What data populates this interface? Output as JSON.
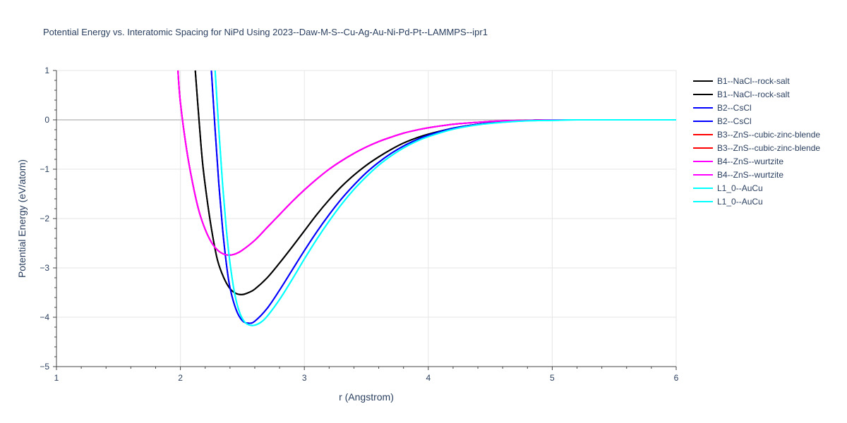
{
  "chart_data": {
    "type": "line",
    "title": "Potential Energy vs. Interatomic Spacing for NiPd Using 2023--Daw-M-S--Cu-Ag-Au-Ni-Pd-Pt--LAMMPS--ipr1",
    "xlabel": "r (Angstrom)",
    "ylabel": "Potential Energy (eV/atom)",
    "xlim": [
      1,
      6
    ],
    "ylim": [
      -5,
      1
    ],
    "xticks": [
      1,
      2,
      3,
      4,
      5,
      6
    ],
    "yticks": [
      1,
      0,
      -1,
      -2,
      -3,
      -4,
      -5
    ],
    "ytick_labels": [
      "1",
      "0",
      "−1",
      "−2",
      "−3",
      "−4",
      "−5"
    ],
    "grid": true,
    "legend_position": "right",
    "series": [
      {
        "name": "B1--NaCl--rock-salt",
        "color": "#000000",
        "x": [
          2.12,
          2.15,
          2.18,
          2.22,
          2.26,
          2.3,
          2.35,
          2.4,
          2.45,
          2.5,
          2.55,
          2.6,
          2.7,
          2.8,
          2.9,
          3.0,
          3.1,
          3.2,
          3.3,
          3.4,
          3.5,
          3.6,
          3.7,
          3.8,
          3.9,
          4.0,
          4.2,
          4.4,
          4.6,
          4.8,
          5.0,
          5.2,
          5.5,
          6.0
        ],
        "y": [
          1.0,
          0.0,
          -0.9,
          -1.7,
          -2.35,
          -2.85,
          -3.2,
          -3.42,
          -3.52,
          -3.54,
          -3.5,
          -3.43,
          -3.2,
          -2.9,
          -2.58,
          -2.25,
          -1.92,
          -1.62,
          -1.35,
          -1.12,
          -0.92,
          -0.75,
          -0.6,
          -0.47,
          -0.37,
          -0.29,
          -0.17,
          -0.09,
          -0.04,
          -0.01,
          0.0,
          0.0,
          0.0,
          0.0
        ]
      },
      {
        "name": "B1--NaCl--rock-salt",
        "color": "#000000",
        "x": [
          2.12,
          2.15,
          2.18,
          2.22,
          2.26,
          2.3,
          2.35,
          2.4,
          2.45,
          2.5,
          2.55,
          2.6,
          2.7,
          2.8,
          2.9,
          3.0,
          3.1,
          3.2,
          3.3,
          3.4,
          3.5,
          3.6,
          3.7,
          3.8,
          3.9,
          4.0,
          4.2,
          4.4,
          4.6,
          4.8,
          5.0,
          5.2,
          5.5,
          6.0
        ],
        "y": [
          1.0,
          0.0,
          -0.9,
          -1.7,
          -2.35,
          -2.85,
          -3.2,
          -3.42,
          -3.52,
          -3.54,
          -3.5,
          -3.43,
          -3.2,
          -2.9,
          -2.58,
          -2.25,
          -1.92,
          -1.62,
          -1.35,
          -1.12,
          -0.92,
          -0.75,
          -0.6,
          -0.47,
          -0.37,
          -0.29,
          -0.17,
          -0.09,
          -0.04,
          -0.01,
          0.0,
          0.0,
          0.0,
          0.0
        ]
      },
      {
        "name": "B2--CsCl",
        "color": "#0000ff",
        "x": [
          2.25,
          2.28,
          2.31,
          2.34,
          2.37,
          2.4,
          2.45,
          2.5,
          2.55,
          2.6,
          2.7,
          2.8,
          2.9,
          3.0,
          3.1,
          3.2,
          3.3,
          3.4,
          3.5,
          3.6,
          3.7,
          3.8,
          3.9,
          4.0,
          4.2,
          4.4,
          4.6,
          4.8,
          5.0,
          5.2,
          5.5,
          6.0
        ],
        "y": [
          1.0,
          -0.2,
          -1.3,
          -2.2,
          -2.9,
          -3.4,
          -3.85,
          -4.07,
          -4.12,
          -4.08,
          -3.82,
          -3.45,
          -3.05,
          -2.65,
          -2.27,
          -1.92,
          -1.6,
          -1.32,
          -1.07,
          -0.86,
          -0.68,
          -0.53,
          -0.41,
          -0.31,
          -0.17,
          -0.09,
          -0.04,
          -0.01,
          0.0,
          0.0,
          0.0,
          0.0
        ]
      },
      {
        "name": "B2--CsCl",
        "color": "#0000ff",
        "x": [
          2.25,
          2.28,
          2.31,
          2.34,
          2.37,
          2.4,
          2.45,
          2.5,
          2.55,
          2.6,
          2.7,
          2.8,
          2.9,
          3.0,
          3.1,
          3.2,
          3.3,
          3.4,
          3.5,
          3.6,
          3.7,
          3.8,
          3.9,
          4.0,
          4.2,
          4.4,
          4.6,
          4.8,
          5.0,
          5.2,
          5.5,
          6.0
        ],
        "y": [
          1.0,
          -0.2,
          -1.3,
          -2.2,
          -2.9,
          -3.4,
          -3.85,
          -4.07,
          -4.12,
          -4.08,
          -3.82,
          -3.45,
          -3.05,
          -2.65,
          -2.27,
          -1.92,
          -1.6,
          -1.32,
          -1.07,
          -0.86,
          -0.68,
          -0.53,
          -0.41,
          -0.31,
          -0.17,
          -0.09,
          -0.04,
          -0.01,
          0.0,
          0.0,
          0.0,
          0.0
        ]
      },
      {
        "name": "B3--ZnS--cubic-zinc-blende",
        "color": "#ff0000",
        "x": [
          1.98,
          2.0,
          2.05,
          2.1,
          2.15,
          2.2,
          2.25,
          2.3,
          2.35,
          2.4,
          2.45,
          2.5,
          2.6,
          2.7,
          2.8,
          2.9,
          3.0,
          3.1,
          3.2,
          3.3,
          3.4,
          3.5,
          3.6,
          3.7,
          3.8,
          3.9,
          4.0,
          4.2,
          4.4,
          4.6,
          4.8,
          5.0,
          5.2,
          5.5,
          6.0
        ],
        "y": [
          1.0,
          0.35,
          -0.6,
          -1.3,
          -1.85,
          -2.22,
          -2.48,
          -2.64,
          -2.72,
          -2.74,
          -2.71,
          -2.64,
          -2.44,
          -2.18,
          -1.92,
          -1.66,
          -1.42,
          -1.2,
          -1.0,
          -0.83,
          -0.68,
          -0.55,
          -0.44,
          -0.35,
          -0.27,
          -0.21,
          -0.16,
          -0.09,
          -0.05,
          -0.02,
          -0.01,
          0.0,
          0.0,
          0.0,
          0.0
        ]
      },
      {
        "name": "B3--ZnS--cubic-zinc-blende",
        "color": "#ff0000",
        "x": [
          1.98,
          2.0,
          2.05,
          2.1,
          2.15,
          2.2,
          2.25,
          2.3,
          2.35,
          2.4,
          2.45,
          2.5,
          2.6,
          2.7,
          2.8,
          2.9,
          3.0,
          3.1,
          3.2,
          3.3,
          3.4,
          3.5,
          3.6,
          3.7,
          3.8,
          3.9,
          4.0,
          4.2,
          4.4,
          4.6,
          4.8,
          5.0,
          5.2,
          5.5,
          6.0
        ],
        "y": [
          1.0,
          0.35,
          -0.6,
          -1.3,
          -1.85,
          -2.22,
          -2.48,
          -2.64,
          -2.72,
          -2.74,
          -2.71,
          -2.64,
          -2.44,
          -2.18,
          -1.92,
          -1.66,
          -1.42,
          -1.2,
          -1.0,
          -0.83,
          -0.68,
          -0.55,
          -0.44,
          -0.35,
          -0.27,
          -0.21,
          -0.16,
          -0.09,
          -0.05,
          -0.02,
          -0.01,
          0.0,
          0.0,
          0.0,
          0.0
        ]
      },
      {
        "name": "B4--ZnS--wurtzite",
        "color": "#ff00ff",
        "x": [
          1.98,
          2.0,
          2.05,
          2.1,
          2.15,
          2.2,
          2.25,
          2.3,
          2.35,
          2.4,
          2.45,
          2.5,
          2.6,
          2.7,
          2.8,
          2.9,
          3.0,
          3.1,
          3.2,
          3.3,
          3.4,
          3.5,
          3.6,
          3.7,
          3.8,
          3.9,
          4.0,
          4.2,
          4.4,
          4.6,
          4.8,
          5.0,
          5.2,
          5.5,
          6.0
        ],
        "y": [
          1.0,
          0.35,
          -0.6,
          -1.3,
          -1.85,
          -2.22,
          -2.48,
          -2.64,
          -2.72,
          -2.74,
          -2.71,
          -2.64,
          -2.44,
          -2.18,
          -1.92,
          -1.66,
          -1.42,
          -1.2,
          -1.0,
          -0.83,
          -0.68,
          -0.55,
          -0.44,
          -0.35,
          -0.27,
          -0.21,
          -0.16,
          -0.09,
          -0.05,
          -0.02,
          -0.01,
          0.0,
          0.0,
          0.0,
          0.0
        ]
      },
      {
        "name": "B4--ZnS--wurtzite",
        "color": "#ff00ff",
        "x": [
          1.98,
          2.0,
          2.05,
          2.1,
          2.15,
          2.2,
          2.25,
          2.3,
          2.35,
          2.4,
          2.45,
          2.5,
          2.6,
          2.7,
          2.8,
          2.9,
          3.0,
          3.1,
          3.2,
          3.3,
          3.4,
          3.5,
          3.6,
          3.7,
          3.8,
          3.9,
          4.0,
          4.2,
          4.4,
          4.6,
          4.8,
          5.0,
          5.2,
          5.5,
          6.0
        ],
        "y": [
          1.0,
          0.35,
          -0.6,
          -1.3,
          -1.85,
          -2.22,
          -2.48,
          -2.64,
          -2.72,
          -2.74,
          -2.71,
          -2.64,
          -2.44,
          -2.18,
          -1.92,
          -1.66,
          -1.42,
          -1.2,
          -1.0,
          -0.83,
          -0.68,
          -0.55,
          -0.44,
          -0.35,
          -0.27,
          -0.21,
          -0.16,
          -0.09,
          -0.05,
          -0.02,
          -0.01,
          0.0,
          0.0,
          0.0,
          0.0
        ]
      },
      {
        "name": "L1_0--AuCu",
        "color": "#00ffff",
        "x": [
          2.28,
          2.31,
          2.34,
          2.37,
          2.4,
          2.44,
          2.48,
          2.52,
          2.56,
          2.6,
          2.65,
          2.7,
          2.8,
          2.9,
          3.0,
          3.1,
          3.2,
          3.3,
          3.4,
          3.5,
          3.6,
          3.7,
          3.8,
          3.9,
          4.0,
          4.2,
          4.4,
          4.6,
          4.8,
          5.0,
          5.2,
          5.5,
          6.0
        ],
        "y": [
          1.0,
          -0.2,
          -1.3,
          -2.2,
          -2.9,
          -3.55,
          -3.92,
          -4.1,
          -4.16,
          -4.16,
          -4.1,
          -3.98,
          -3.64,
          -3.24,
          -2.82,
          -2.42,
          -2.05,
          -1.71,
          -1.41,
          -1.15,
          -0.92,
          -0.73,
          -0.57,
          -0.44,
          -0.34,
          -0.19,
          -0.1,
          -0.05,
          -0.02,
          -0.01,
          0.0,
          0.0,
          0.0
        ]
      },
      {
        "name": "L1_0--AuCu",
        "color": "#00ffff",
        "x": [
          2.28,
          2.31,
          2.34,
          2.37,
          2.4,
          2.44,
          2.48,
          2.52,
          2.56,
          2.6,
          2.65,
          2.7,
          2.8,
          2.9,
          3.0,
          3.1,
          3.2,
          3.3,
          3.4,
          3.5,
          3.6,
          3.7,
          3.8,
          3.9,
          4.0,
          4.2,
          4.4,
          4.6,
          4.8,
          5.0,
          5.2,
          5.5,
          6.0
        ],
        "y": [
          1.0,
          -0.2,
          -1.3,
          -2.2,
          -2.9,
          -3.55,
          -3.92,
          -4.1,
          -4.16,
          -4.16,
          -4.1,
          -3.98,
          -3.64,
          -3.24,
          -2.82,
          -2.42,
          -2.05,
          -1.71,
          -1.41,
          -1.15,
          -0.92,
          -0.73,
          -0.57,
          -0.44,
          -0.34,
          -0.19,
          -0.1,
          -0.05,
          -0.02,
          -0.01,
          0.0,
          0.0,
          0.0
        ]
      }
    ]
  }
}
